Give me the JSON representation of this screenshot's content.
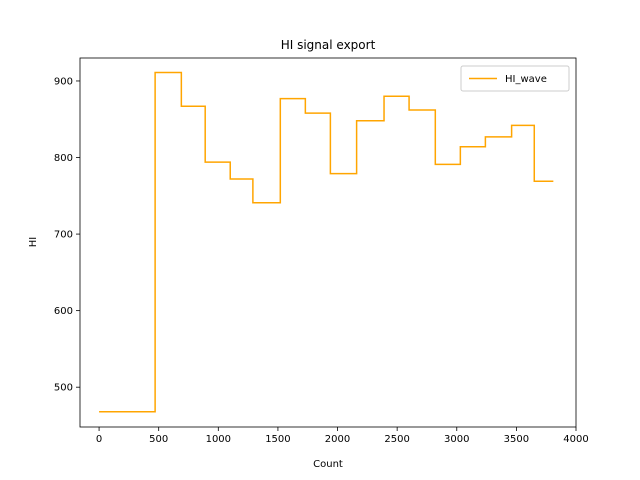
{
  "chart_data": {
    "type": "line",
    "drawstyle": "steps-post",
    "title": "HI signal export",
    "xlabel": "Count",
    "ylabel": "HI",
    "xlim": [
      -160,
      4000
    ],
    "ylim": [
      448,
      930
    ],
    "xticks": [
      0,
      500,
      1000,
      1500,
      2000,
      2500,
      3000,
      3500,
      4000
    ],
    "yticks": [
      500,
      600,
      700,
      800,
      900
    ],
    "grid": false,
    "legend_position": "top-right",
    "series": [
      {
        "name": "HI_wave",
        "color": "#ffa500",
        "x": [
          0,
          470,
          690,
          890,
          1100,
          1290,
          1520,
          1730,
          1940,
          2160,
          2390,
          2600,
          2820,
          3030,
          3240,
          3460,
          3650,
          3810
        ],
        "y": [
          468,
          911,
          867,
          794,
          772,
          741,
          877,
          858,
          779,
          848,
          880,
          862,
          791,
          814,
          827,
          842,
          769,
          769
        ]
      }
    ]
  }
}
